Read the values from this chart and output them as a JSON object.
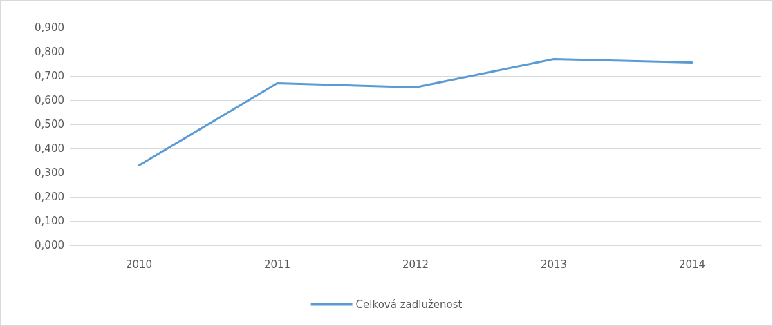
{
  "chart_data": {
    "type": "line",
    "categories": [
      "2010",
      "2011",
      "2012",
      "2013",
      "2014"
    ],
    "series": [
      {
        "name": "Celková zadluženost",
        "color": "#5b9bd5",
        "values": [
          0.33,
          0.67,
          0.653,
          0.77,
          0.756
        ]
      }
    ],
    "ylim": [
      0,
      0.9
    ],
    "yticks": [
      {
        "value": 0,
        "label": "0,000"
      },
      {
        "value": 0.1,
        "label": "0,100"
      },
      {
        "value": 0.2,
        "label": "0,200"
      },
      {
        "value": 0.3,
        "label": "0,300"
      },
      {
        "value": 0.4,
        "label": "0,400"
      },
      {
        "value": 0.5,
        "label": "0,500"
      },
      {
        "value": 0.6,
        "label": "0,600"
      },
      {
        "value": 0.7,
        "label": "0,700"
      },
      {
        "value": 0.8,
        "label": "0,800"
      },
      {
        "value": 0.9,
        "label": "0,900"
      }
    ],
    "grid": "y",
    "legend": "bottom",
    "marker": "none",
    "line_style": "solid"
  }
}
